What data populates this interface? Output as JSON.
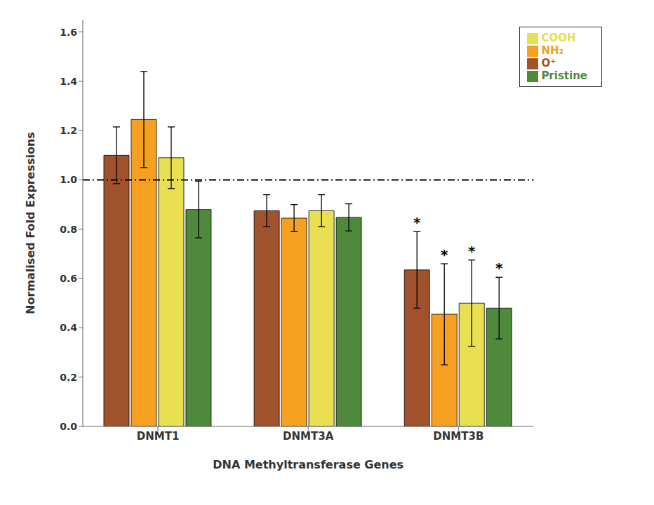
{
  "chart_data": {
    "type": "bar",
    "xlabel": "DNA Methyltransferase Genes",
    "ylabel": "Normalised Fold Expressions",
    "categories": [
      "DNMT1",
      "DNMT3A",
      "DNMT3B"
    ],
    "series": [
      {
        "name": "O⁺",
        "color": "#A0522D",
        "values": [
          1.1,
          0.875,
          0.635
        ],
        "errors": [
          0.115,
          0.065,
          0.155
        ]
      },
      {
        "name": "NH₂",
        "color": "#F5A020",
        "values": [
          1.245,
          0.845,
          0.455
        ],
        "errors": [
          0.195,
          0.055,
          0.205
        ]
      },
      {
        "name": "COOH",
        "color": "#E8E050",
        "values": [
          1.09,
          0.875,
          0.5
        ],
        "errors": [
          0.125,
          0.065,
          0.175
        ]
      },
      {
        "name": "Pristine",
        "color": "#4F8A3C",
        "values": [
          0.88,
          0.848,
          0.48
        ],
        "errors": [
          0.115,
          0.055,
          0.125
        ]
      }
    ],
    "annotations": [
      {
        "text": "*",
        "category": "DNMT3B",
        "series": "O⁺"
      },
      {
        "text": "*",
        "category": "DNMT3B",
        "series": "NH₂"
      },
      {
        "text": "*",
        "category": "DNMT3B",
        "series": "COOH"
      },
      {
        "text": "*",
        "category": "DNMT3B",
        "series": "Pristine"
      }
    ],
    "reference_lines": [
      {
        "y": 1.0,
        "line_style": "dashdot"
      }
    ],
    "ylim": [
      0.0,
      1.65
    ],
    "yticks": [
      {
        "value": 0.0,
        "label": "0.0"
      },
      0.2,
      0.4,
      0.6,
      0.8,
      {
        "value": 1.0,
        "label": "1.0"
      },
      1.2,
      1.4,
      1.6
    ],
    "legend": "upper right",
    "grid": false
  }
}
